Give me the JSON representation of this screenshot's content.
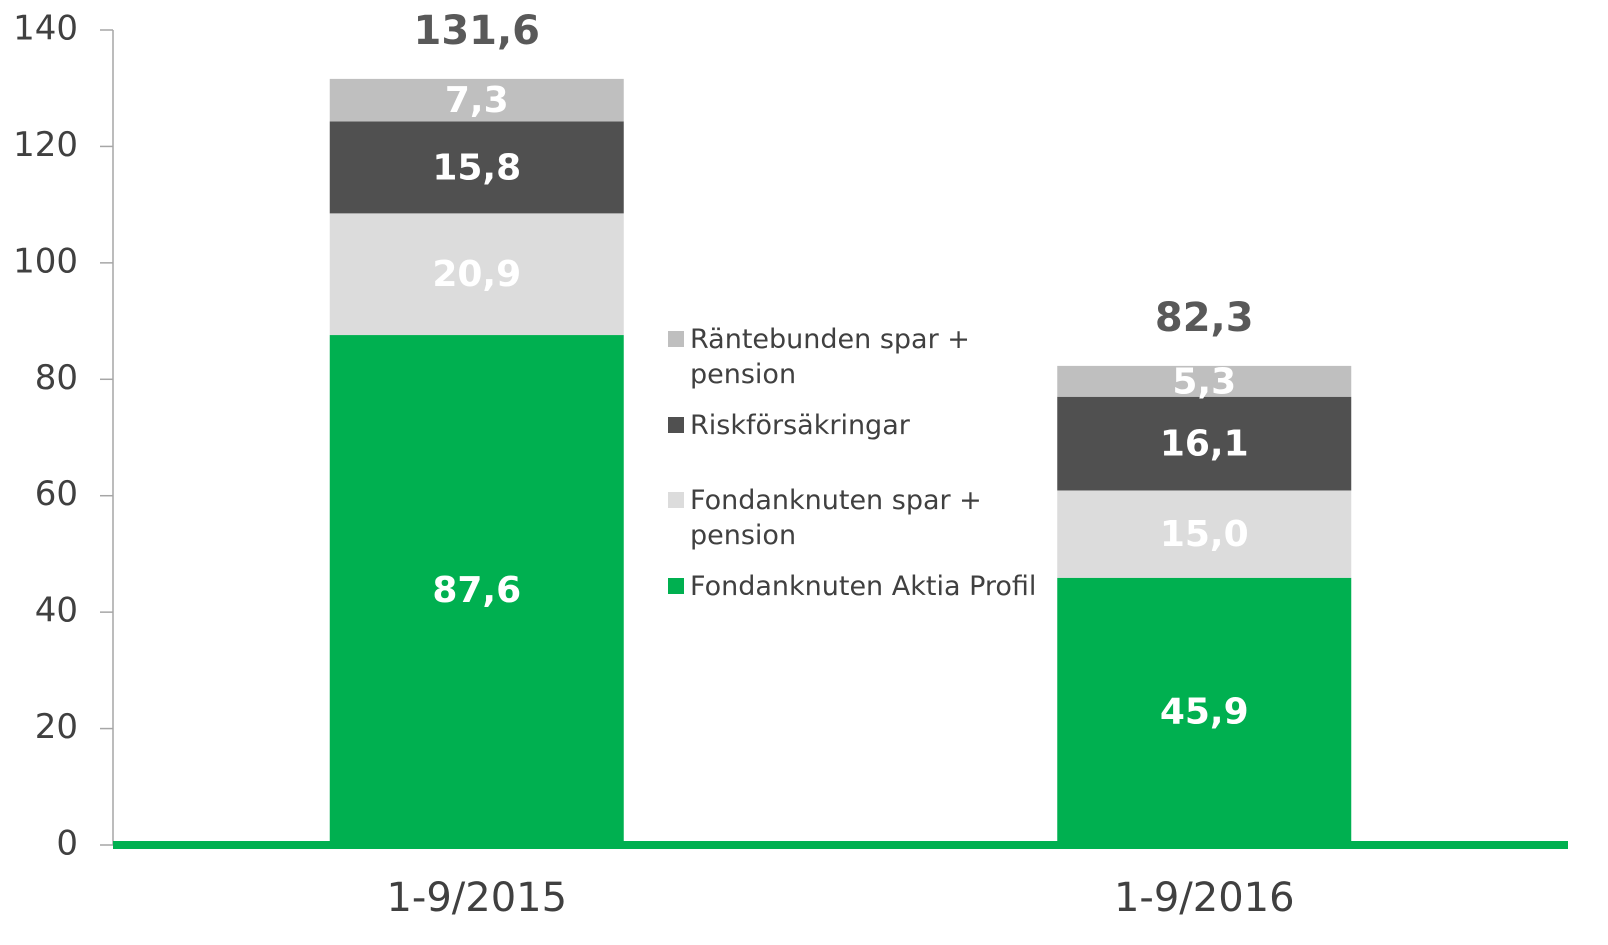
{
  "chart_data": {
    "type": "stacked_bar",
    "categories": [
      "1-9/2015",
      "1-9/2016"
    ],
    "series": [
      {
        "name": "Fondanknuten Aktia Profil",
        "color": "#00b050",
        "values": [
          87.6,
          45.9
        ],
        "value_labels": [
          "87,6",
          "45,9"
        ]
      },
      {
        "name": "Fondanknuten spar + pension",
        "color": "#dcdcdc",
        "values": [
          20.9,
          15.0
        ],
        "value_labels": [
          "20,9",
          "15,0"
        ]
      },
      {
        "name": "Riskförsäkringar",
        "color": "#505050",
        "values": [
          15.8,
          16.1
        ],
        "value_labels": [
          "15,8",
          "16,1"
        ]
      },
      {
        "name": "Räntebunden spar + pension",
        "color": "#bfbfbf",
        "values": [
          7.3,
          5.3
        ],
        "value_labels": [
          "7,3",
          "5,3"
        ]
      }
    ],
    "totals": [
      131.6,
      82.3
    ],
    "total_labels": [
      "131,6",
      "82,3"
    ],
    "ylim": [
      0,
      140
    ],
    "yticks": [
      0,
      20,
      40,
      60,
      80,
      100,
      120,
      140
    ],
    "legend": "center",
    "grid": false
  }
}
